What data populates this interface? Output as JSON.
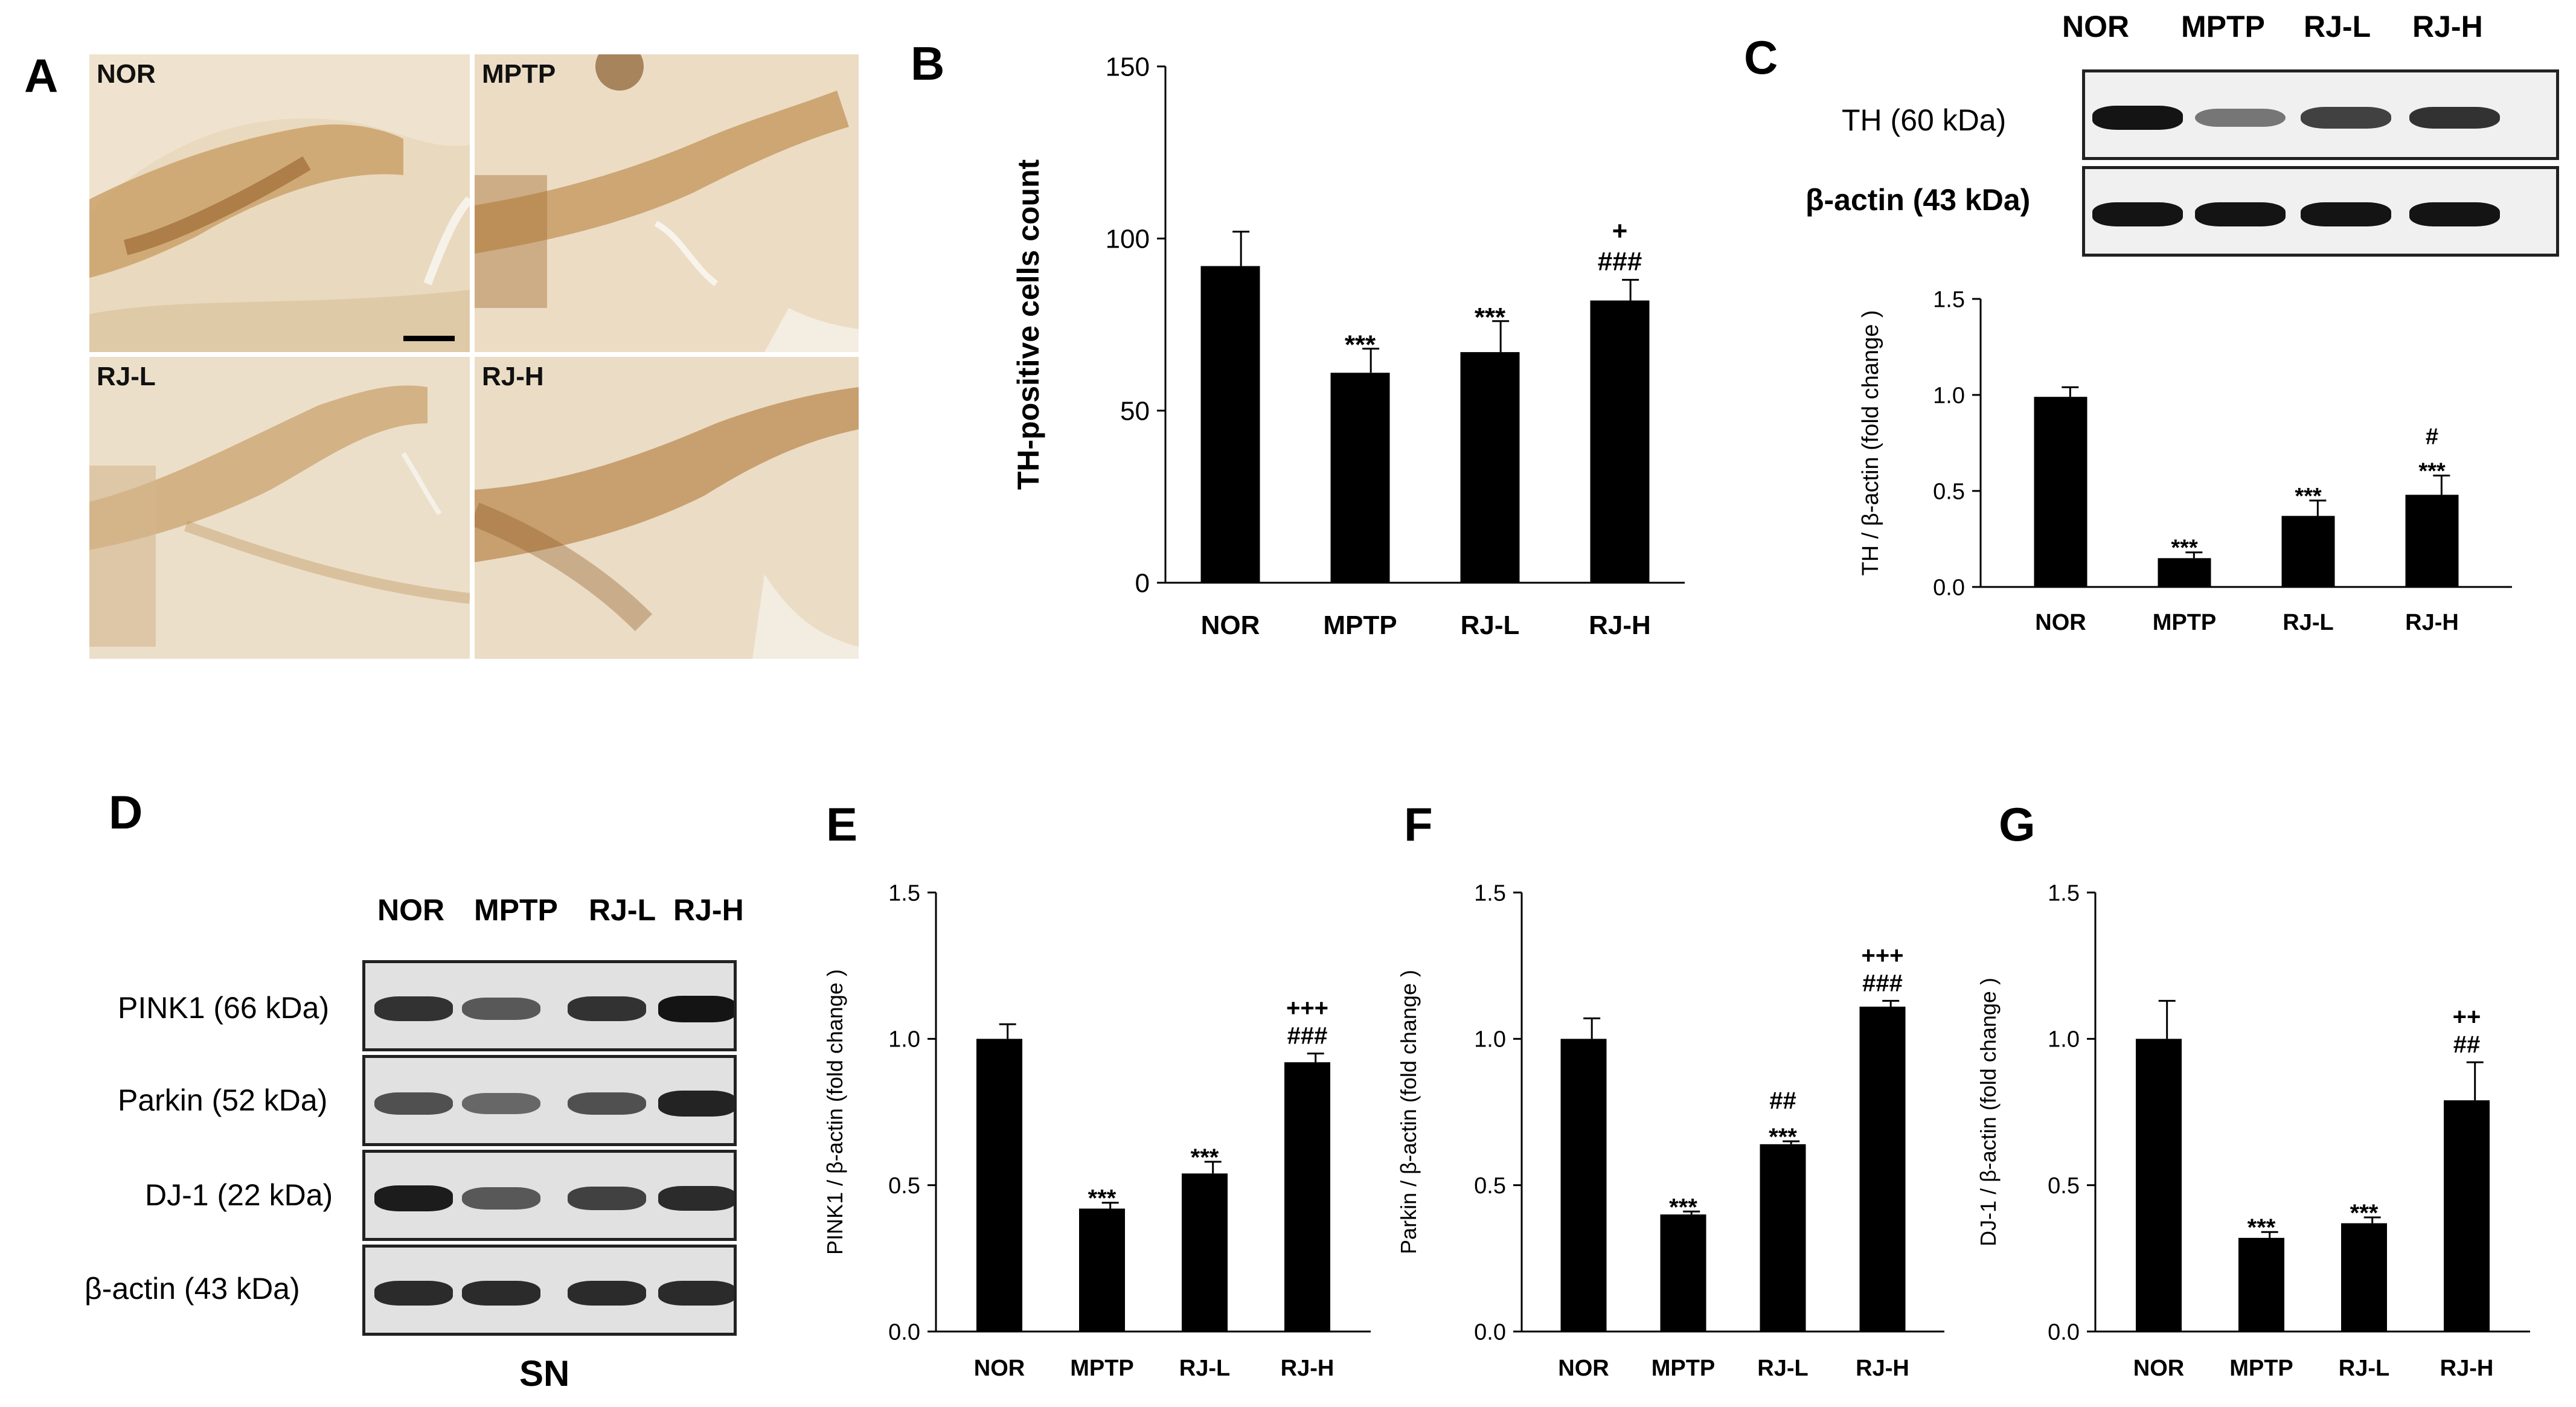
{
  "panels": {
    "A": {
      "letter": "A",
      "images": [
        {
          "label": "NOR"
        },
        {
          "label": "MPTP"
        },
        {
          "label": "RJ-L"
        },
        {
          "label": "RJ-H"
        }
      ]
    },
    "B": {
      "letter": "B"
    },
    "C": {
      "letter": "C",
      "lane_labels": [
        "NOR",
        "MPTP",
        "RJ-L",
        "RJ-H"
      ],
      "rows": [
        {
          "label": "TH (60 kDa)",
          "intensity": [
            1.0,
            0.35,
            0.7,
            0.8
          ]
        },
        {
          "label": "β-actin (43 kDa)",
          "intensity": [
            1.0,
            1.0,
            1.0,
            1.0
          ]
        }
      ]
    },
    "D": {
      "letter": "D",
      "lane_labels": [
        "NOR",
        "MPTP",
        "RJ-L",
        "RJ-H"
      ],
      "rows": [
        {
          "label": "PINK1 (66 kDa)",
          "intensity": [
            0.8,
            0.55,
            0.8,
            1.0
          ]
        },
        {
          "label": "Parkin (52 kDa)",
          "intensity": [
            0.6,
            0.45,
            0.6,
            0.9
          ]
        },
        {
          "label": "DJ-1 (22 kDa)",
          "intensity": [
            0.95,
            0.55,
            0.7,
            0.85
          ]
        },
        {
          "label": "β-actin (43 kDa)",
          "intensity": [
            0.85,
            0.85,
            0.85,
            0.85
          ]
        }
      ],
      "footer": "SN"
    },
    "E": {
      "letter": "E"
    },
    "F": {
      "letter": "F"
    },
    "G": {
      "letter": "G"
    }
  },
  "colors": {
    "bar": "#000000",
    "blot_bg": "#e3e3e3",
    "tissue": "#e8d7bd"
  },
  "chart_data": [
    {
      "id": "B",
      "type": "bar",
      "categories": [
        "NOR",
        "MPTP",
        "RJ-L",
        "RJ-H"
      ],
      "values": [
        92,
        61,
        67,
        82
      ],
      "errors": [
        10,
        7,
        9,
        6
      ],
      "annotations": [
        [],
        [
          "***"
        ],
        [
          "***"
        ],
        [
          "###",
          "+"
        ]
      ],
      "ylabel": "TH-positive cells count",
      "ylim": [
        0,
        150
      ],
      "yticks": [
        0,
        50,
        100,
        150
      ],
      "ytick_labels": [
        "0",
        "50",
        "100",
        "150"
      ]
    },
    {
      "id": "C",
      "type": "bar",
      "categories": [
        "NOR",
        "MPTP",
        "RJ-L",
        "RJ-H"
      ],
      "values": [
        0.99,
        0.15,
        0.37,
        0.48
      ],
      "errors": [
        0.05,
        0.03,
        0.08,
        0.1
      ],
      "annotations": [
        [],
        [
          "***"
        ],
        [
          "***"
        ],
        [
          "***",
          "#"
        ]
      ],
      "ylabel": "TH / β-actin (fold change )",
      "ylim": [
        0,
        1.5
      ],
      "yticks": [
        0,
        0.5,
        1.0,
        1.5
      ],
      "ytick_labels": [
        "0.0",
        "0.5",
        "1.0",
        "1.5"
      ]
    },
    {
      "id": "E",
      "type": "bar",
      "categories": [
        "NOR",
        "MPTP",
        "RJ-L",
        "RJ-H"
      ],
      "values": [
        1.0,
        0.42,
        0.54,
        0.92
      ],
      "errors": [
        0.05,
        0.02,
        0.04,
        0.03
      ],
      "annotations": [
        [],
        [
          "***"
        ],
        [
          "***"
        ],
        [
          "###",
          "+++"
        ]
      ],
      "ylabel": "PINK1 / β-actin (fold change )",
      "ylim": [
        0,
        1.5
      ],
      "yticks": [
        0,
        0.5,
        1.0,
        1.5
      ],
      "ytick_labels": [
        "0.0",
        "0.5",
        "1.0",
        "1.5"
      ]
    },
    {
      "id": "F",
      "type": "bar",
      "categories": [
        "NOR",
        "MPTP",
        "RJ-L",
        "RJ-H"
      ],
      "values": [
        1.0,
        0.4,
        0.64,
        1.11
      ],
      "errors": [
        0.07,
        0.01,
        0.01,
        0.02
      ],
      "annotations": [
        [],
        [
          "***"
        ],
        [
          "***",
          "##"
        ],
        [
          "###",
          "+++"
        ]
      ],
      "ylabel": "Parkin / β-actin (fold change )",
      "ylim": [
        0,
        1.5
      ],
      "yticks": [
        0,
        0.5,
        1.0,
        1.5
      ],
      "ytick_labels": [
        "0.0",
        "0.5",
        "1.0",
        "1.5"
      ]
    },
    {
      "id": "G",
      "type": "bar",
      "categories": [
        "NOR",
        "MPTP",
        "RJ-L",
        "RJ-H"
      ],
      "values": [
        1.0,
        0.32,
        0.37,
        0.79
      ],
      "errors": [
        0.13,
        0.02,
        0.02,
        0.13
      ],
      "annotations": [
        [],
        [
          "***"
        ],
        [
          "***"
        ],
        [
          "##",
          "++"
        ]
      ],
      "ylabel": "DJ-1 / β-actin (fold change )",
      "ylim": [
        0,
        1.5
      ],
      "yticks": [
        0,
        0.5,
        1.0,
        1.5
      ],
      "ytick_labels": [
        "0.0",
        "0.5",
        "1.0",
        "1.5"
      ]
    }
  ]
}
